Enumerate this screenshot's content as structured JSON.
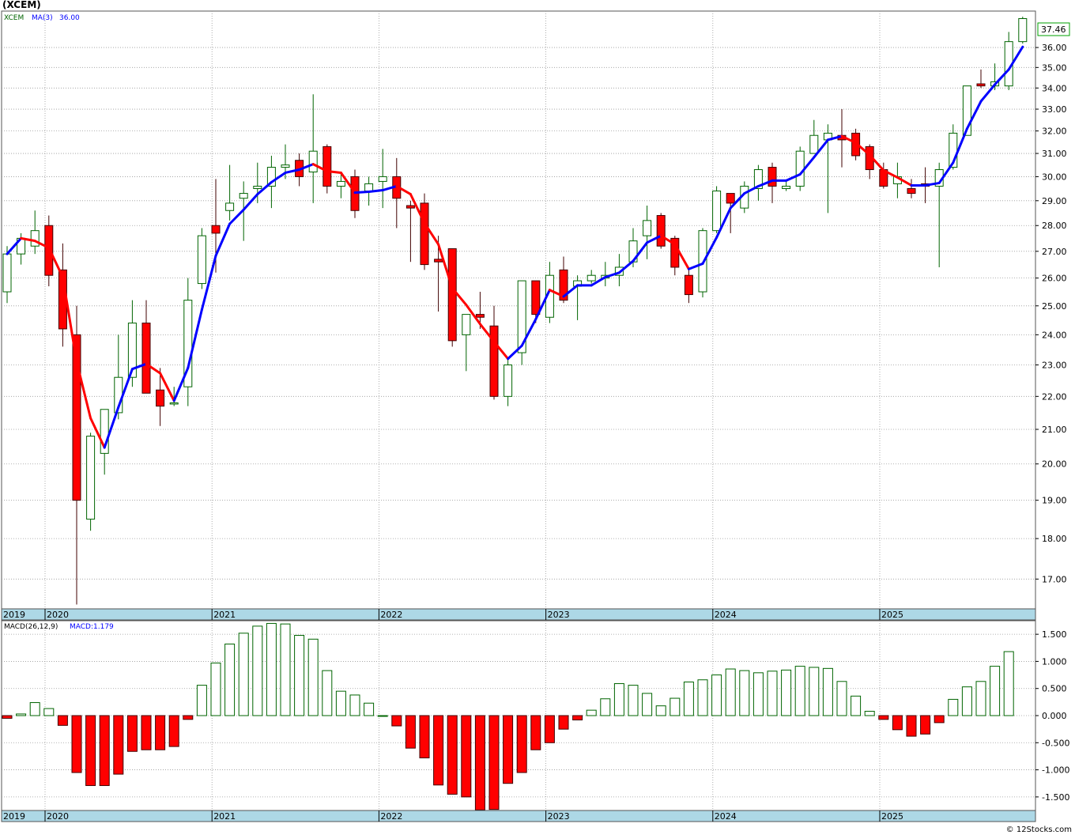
{
  "title": "(XCEM)",
  "copyright": "© 12Stocks.com",
  "colors": {
    "up_fill": "#ffffff",
    "up_stroke": "#006400",
    "down_fill": "#ff0000",
    "down_stroke": "#400000",
    "ma_up": "#0000ff",
    "ma_down": "#ff0000",
    "axis_band": "#add8e6",
    "grid": "#9a9a9a",
    "last_price_box": "#00a000"
  },
  "chart_data": [
    {
      "type": "candlestick",
      "name": "price",
      "legend": {
        "symbol": "XCEM",
        "ma_label": "MA(3)",
        "ma_value": "36.00"
      },
      "last_price_label": "37.46",
      "y_ticks": [
        "17.00",
        "18.00",
        "19.00",
        "20.00",
        "21.00",
        "22.00",
        "23.00",
        "24.00",
        "25.00",
        "26.00",
        "27.00",
        "28.00",
        "29.00",
        "30.00",
        "31.00",
        "32.00",
        "33.00",
        "34.00",
        "35.00",
        "36.00"
      ],
      "ylim": [
        16.3,
        37.9
      ],
      "y_scale": "log",
      "grid": true,
      "x_year_labels": [
        "2019",
        "2020",
        "2021",
        "2022",
        "2023",
        "2024",
        "2025"
      ],
      "candles": [
        {
          "d": "2019-10",
          "o": 25.5,
          "h": 27.2,
          "l": 25.1,
          "c": 26.9
        },
        {
          "d": "2019-11",
          "o": 26.9,
          "h": 27.7,
          "l": 26.5,
          "c": 27.5
        },
        {
          "d": "2019-12",
          "o": 27.2,
          "h": 28.6,
          "l": 26.9,
          "c": 27.8
        },
        {
          "d": "2020-01",
          "o": 28.0,
          "h": 28.4,
          "l": 25.7,
          "c": 26.1
        },
        {
          "d": "2020-02",
          "o": 26.3,
          "h": 27.3,
          "l": 23.6,
          "c": 24.2
        },
        {
          "d": "2020-03",
          "o": 24.0,
          "h": 25.0,
          "l": 16.4,
          "c": 19.0
        },
        {
          "d": "2020-04",
          "o": 18.5,
          "h": 20.9,
          "l": 18.2,
          "c": 20.8
        },
        {
          "d": "2020-05",
          "o": 20.3,
          "h": 21.6,
          "l": 19.7,
          "c": 21.6
        },
        {
          "d": "2020-06",
          "o": 21.5,
          "h": 24.0,
          "l": 21.3,
          "c": 22.6
        },
        {
          "d": "2020-07",
          "o": 22.6,
          "h": 25.2,
          "l": 22.3,
          "c": 24.4
        },
        {
          "d": "2020-08",
          "o": 24.4,
          "h": 25.2,
          "l": 22.1,
          "c": 22.1
        },
        {
          "d": "2020-09",
          "o": 22.2,
          "h": 22.9,
          "l": 21.1,
          "c": 21.7
        },
        {
          "d": "2020-10",
          "o": 21.8,
          "h": 22.3,
          "l": 21.7,
          "c": 21.8
        },
        {
          "d": "2020-11",
          "o": 22.3,
          "h": 26.0,
          "l": 21.7,
          "c": 25.2
        },
        {
          "d": "2020-12",
          "o": 25.8,
          "h": 27.9,
          "l": 25.6,
          "c": 27.6
        },
        {
          "d": "2021-01",
          "o": 28.0,
          "h": 29.9,
          "l": 26.2,
          "c": 27.7
        },
        {
          "d": "2021-02",
          "o": 28.6,
          "h": 30.5,
          "l": 28.2,
          "c": 28.9
        },
        {
          "d": "2021-03",
          "o": 29.1,
          "h": 29.8,
          "l": 27.4,
          "c": 29.3
        },
        {
          "d": "2021-04",
          "o": 29.5,
          "h": 30.6,
          "l": 28.9,
          "c": 29.6
        },
        {
          "d": "2021-05",
          "o": 29.6,
          "h": 30.9,
          "l": 28.7,
          "c": 30.4
        },
        {
          "d": "2021-06",
          "o": 30.4,
          "h": 31.4,
          "l": 29.9,
          "c": 30.5
        },
        {
          "d": "2021-07",
          "o": 30.7,
          "h": 31.0,
          "l": 29.6,
          "c": 30.0
        },
        {
          "d": "2021-08",
          "o": 30.2,
          "h": 33.7,
          "l": 28.9,
          "c": 31.1
        },
        {
          "d": "2021-09",
          "o": 31.3,
          "h": 31.4,
          "l": 29.3,
          "c": 29.6
        },
        {
          "d": "2021-10",
          "o": 29.6,
          "h": 30.2,
          "l": 29.1,
          "c": 29.8
        },
        {
          "d": "2021-11",
          "o": 30.0,
          "h": 30.3,
          "l": 28.3,
          "c": 28.6
        },
        {
          "d": "2021-12",
          "o": 29.4,
          "h": 30.0,
          "l": 28.8,
          "c": 29.7
        },
        {
          "d": "2022-01",
          "o": 29.8,
          "h": 31.2,
          "l": 28.7,
          "c": 30.0
        },
        {
          "d": "2022-02",
          "o": 30.0,
          "h": 30.8,
          "l": 27.9,
          "c": 29.1
        },
        {
          "d": "2022-03",
          "o": 28.8,
          "h": 29.0,
          "l": 26.6,
          "c": 28.7
        },
        {
          "d": "2022-04",
          "o": 28.9,
          "h": 29.3,
          "l": 26.3,
          "c": 26.5
        },
        {
          "d": "2022-05",
          "o": 26.7,
          "h": 27.6,
          "l": 24.8,
          "c": 26.6
        },
        {
          "d": "2022-06",
          "o": 27.1,
          "h": 27.1,
          "l": 23.6,
          "c": 23.8
        },
        {
          "d": "2022-07",
          "o": 24.0,
          "h": 24.6,
          "l": 22.8,
          "c": 24.7
        },
        {
          "d": "2022-08",
          "o": 24.7,
          "h": 25.5,
          "l": 24.2,
          "c": 24.6
        },
        {
          "d": "2022-09",
          "o": 24.3,
          "h": 25.0,
          "l": 21.9,
          "c": 22.0
        },
        {
          "d": "2022-10",
          "o": 22.0,
          "h": 23.2,
          "l": 21.7,
          "c": 23.0
        },
        {
          "d": "2022-11",
          "o": 23.4,
          "h": 25.9,
          "l": 23.0,
          "c": 25.9
        },
        {
          "d": "2022-12",
          "o": 25.9,
          "h": 25.9,
          "l": 24.4,
          "c": 24.7
        },
        {
          "d": "2023-01",
          "o": 24.6,
          "h": 26.6,
          "l": 24.4,
          "c": 26.1
        },
        {
          "d": "2023-02",
          "o": 26.3,
          "h": 26.8,
          "l": 25.1,
          "c": 25.2
        },
        {
          "d": "2023-03",
          "o": 25.7,
          "h": 26.1,
          "l": 24.5,
          "c": 25.9
        },
        {
          "d": "2023-04",
          "o": 25.9,
          "h": 26.3,
          "l": 25.8,
          "c": 26.1
        },
        {
          "d": "2023-05",
          "o": 26.0,
          "h": 26.6,
          "l": 25.7,
          "c": 26.1
        },
        {
          "d": "2023-06",
          "o": 26.1,
          "h": 26.9,
          "l": 25.7,
          "c": 26.4
        },
        {
          "d": "2023-07",
          "o": 26.6,
          "h": 27.9,
          "l": 26.4,
          "c": 27.4
        },
        {
          "d": "2023-08",
          "o": 27.6,
          "h": 28.8,
          "l": 26.7,
          "c": 28.2
        },
        {
          "d": "2023-09",
          "o": 28.4,
          "h": 28.5,
          "l": 27.1,
          "c": 27.2
        },
        {
          "d": "2023-10",
          "o": 27.5,
          "h": 27.6,
          "l": 26.1,
          "c": 26.4
        },
        {
          "d": "2023-11",
          "o": 26.1,
          "h": 26.3,
          "l": 25.1,
          "c": 25.4
        },
        {
          "d": "2023-12",
          "o": 25.5,
          "h": 27.9,
          "l": 25.3,
          "c": 27.8
        },
        {
          "d": "2024-01",
          "o": 27.8,
          "h": 29.6,
          "l": 27.7,
          "c": 29.4
        },
        {
          "d": "2024-02",
          "o": 29.3,
          "h": 29.3,
          "l": 27.7,
          "c": 28.9
        },
        {
          "d": "2024-03",
          "o": 28.7,
          "h": 29.8,
          "l": 28.5,
          "c": 29.6
        },
        {
          "d": "2024-04",
          "o": 29.5,
          "h": 30.5,
          "l": 29.0,
          "c": 30.3
        },
        {
          "d": "2024-05",
          "o": 30.4,
          "h": 30.6,
          "l": 28.9,
          "c": 29.6
        },
        {
          "d": "2024-06",
          "o": 29.5,
          "h": 29.8,
          "l": 29.4,
          "c": 29.6
        },
        {
          "d": "2024-07",
          "o": 29.6,
          "h": 31.3,
          "l": 29.4,
          "c": 31.1
        },
        {
          "d": "2024-08",
          "o": 31.0,
          "h": 32.5,
          "l": 31.0,
          "c": 31.8
        },
        {
          "d": "2024-09",
          "o": 31.6,
          "h": 32.3,
          "l": 28.5,
          "c": 31.9
        },
        {
          "d": "2024-10",
          "o": 31.8,
          "h": 33.0,
          "l": 30.4,
          "c": 31.6
        },
        {
          "d": "2024-11",
          "o": 31.9,
          "h": 32.1,
          "l": 30.7,
          "c": 30.9
        },
        {
          "d": "2024-12",
          "o": 31.3,
          "h": 31.4,
          "l": 29.9,
          "c": 30.3
        },
        {
          "d": "2025-01",
          "o": 30.3,
          "h": 30.6,
          "l": 29.5,
          "c": 29.6
        },
        {
          "d": "2025-02",
          "o": 29.7,
          "h": 30.6,
          "l": 29.1,
          "c": 30.0
        },
        {
          "d": "2025-03",
          "o": 29.5,
          "h": 29.9,
          "l": 29.1,
          "c": 29.3
        },
        {
          "d": "2025-04",
          "o": 29.7,
          "h": 30.4,
          "l": 28.9,
          "c": 29.6
        },
        {
          "d": "2025-05",
          "o": 29.6,
          "h": 30.6,
          "l": 26.4,
          "c": 30.3
        },
        {
          "d": "2025-06",
          "o": 30.4,
          "h": 32.3,
          "l": 30.3,
          "c": 31.9
        },
        {
          "d": "2025-07",
          "o": 31.8,
          "h": 34.1,
          "l": 31.8,
          "c": 34.1
        },
        {
          "d": "2025-08",
          "o": 34.2,
          "h": 34.9,
          "l": 34.0,
          "c": 34.1
        },
        {
          "d": "2025-09",
          "o": 34.1,
          "h": 35.2,
          "l": 33.9,
          "c": 34.3
        },
        {
          "d": "2025-10",
          "o": 34.1,
          "h": 36.8,
          "l": 33.9,
          "c": 36.3
        },
        {
          "d": "2025-11",
          "o": 36.3,
          "h": 37.6,
          "l": 36.2,
          "c": 37.5
        }
      ]
    },
    {
      "type": "bar",
      "name": "macd",
      "legend": {
        "label": "MACD(26,12,9)",
        "value_label": "MACD:1.179"
      },
      "y_ticks": [
        "1.500",
        "1.000",
        "0.500",
        "0.000",
        "-0.500",
        "-1.000",
        "-1.500"
      ],
      "ylim": [
        -1.75,
        1.75
      ],
      "grid": true,
      "x_year_labels": [
        "2019",
        "2020",
        "2021",
        "2022",
        "2023",
        "2024",
        "2025"
      ],
      "values": [
        -0.05,
        0.03,
        0.24,
        0.13,
        -0.18,
        -1.05,
        -1.29,
        -1.29,
        -1.08,
        -0.66,
        -0.63,
        -0.63,
        -0.57,
        -0.07,
        0.56,
        0.97,
        1.32,
        1.52,
        1.65,
        1.7,
        1.69,
        1.48,
        1.41,
        0.83,
        0.45,
        0.38,
        0.23,
        0.0,
        -0.19,
        -0.6,
        -0.78,
        -1.28,
        -1.45,
        -1.5,
        -1.74,
        -1.73,
        -1.25,
        -1.05,
        -0.63,
        -0.5,
        -0.25,
        -0.08,
        0.1,
        0.31,
        0.59,
        0.56,
        0.41,
        0.18,
        0.32,
        0.62,
        0.66,
        0.75,
        0.86,
        0.83,
        0.79,
        0.82,
        0.84,
        0.91,
        0.89,
        0.87,
        0.63,
        0.36,
        0.08,
        -0.07,
        -0.26,
        -0.38,
        -0.34,
        -0.13,
        0.3,
        0.53,
        0.63,
        0.91,
        1.18
      ]
    }
  ]
}
